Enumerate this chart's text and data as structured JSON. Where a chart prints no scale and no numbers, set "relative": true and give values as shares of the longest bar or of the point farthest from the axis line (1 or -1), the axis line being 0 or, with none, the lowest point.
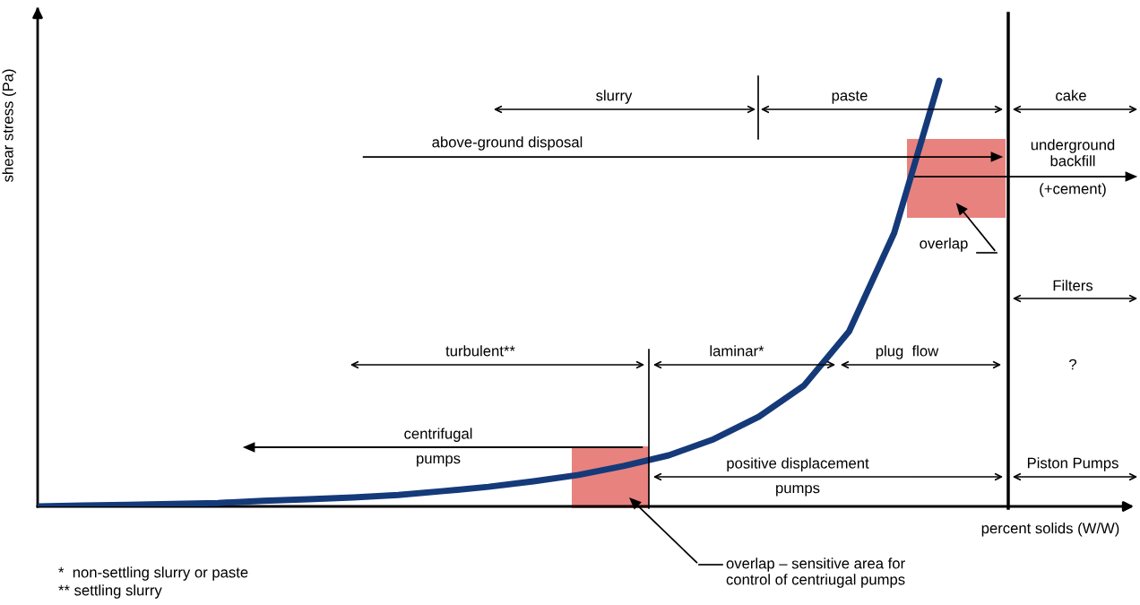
{
  "chart_data": {
    "type": "line",
    "xlabel": "percent solids (W/W)",
    "ylabel": "shear stress (Pa)",
    "categories": [
      null,
      null,
      null,
      null,
      null,
      null,
      null,
      null,
      null,
      null,
      null,
      null,
      null,
      null,
      null,
      null,
      null,
      null,
      null,
      null,
      null
    ],
    "relative": true,
    "series": [
      {
        "color": "#153a7a",
        "values": [
          0,
          0.002,
          0.004,
          0.006,
          0.008,
          0.013,
          0.017,
          0.021,
          0.027,
          0.036,
          0.046,
          0.059,
          0.074,
          0.095,
          0.12,
          0.158,
          0.211,
          0.284,
          0.411,
          0.642,
          1.0
        ]
      }
    ],
    "marker": "none",
    "line_style": "solid",
    "annotations": [
      "slurry",
      "paste",
      "cake",
      "above-ground disposal",
      "underground\nbackfill",
      "(+cement)",
      "overlap",
      "Filters",
      "turbulent**",
      "laminar*",
      "plug  flow",
      "?",
      "centrifugal\npumps",
      "positive displacement\npumps",
      "Piston Pumps",
      "overlap – sensitive area for\ncontrol of centriugal pumps",
      "*  non-settling slurry or paste",
      "** settling slurry"
    ]
  }
}
